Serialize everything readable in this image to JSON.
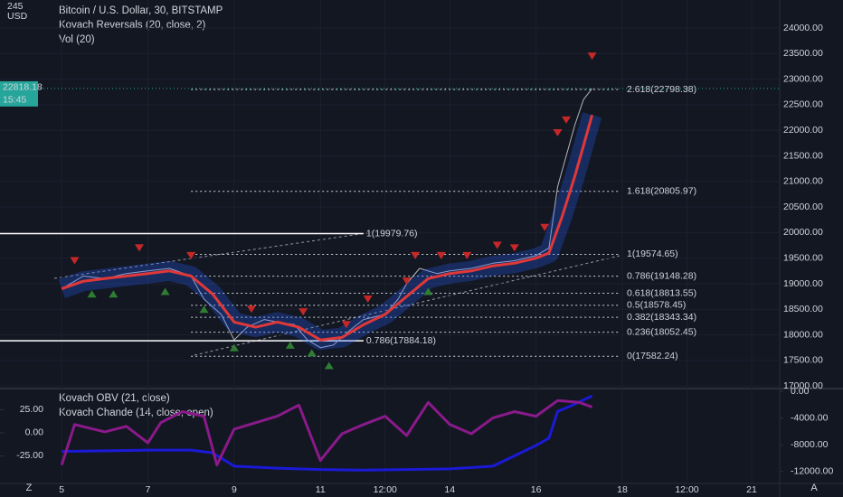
{
  "chart_data": [
    {
      "type": "line",
      "title": "Bitcoin / U.S. Dollar, 30, BITSTAMP",
      "annotations": [
        "Vol (20)"
      ],
      "unit": "USD",
      "xlim": [
        3.57,
        21.65
      ],
      "xticks": [
        5,
        7,
        9,
        11,
        {
          "value": 12.5,
          "label": "12:00"
        },
        14,
        16,
        18,
        {
          "value": 19.5,
          "label": "12:00"
        },
        21
      ],
      "ylim": [
        16950,
        24548
      ],
      "yticks": [
        {
          "value": 17000,
          "label": "17000.00"
        },
        {
          "value": 17500,
          "label": "17500.00"
        },
        {
          "value": 18000,
          "label": "18000.00"
        },
        {
          "value": 18500,
          "label": "18500.00"
        },
        {
          "value": 19000,
          "label": "19000.00"
        },
        {
          "value": 19500,
          "label": "19500.00"
        },
        {
          "value": 20000,
          "label": "20000.00"
        },
        {
          "value": 20500,
          "label": "20500.00"
        },
        {
          "value": 21000,
          "label": "21000.00"
        },
        {
          "value": 21500,
          "label": "21500.00"
        },
        {
          "value": 22000,
          "label": "22000.00"
        },
        {
          "value": 22500,
          "label": "22500.00"
        },
        {
          "value": 23000,
          "label": "23000.00"
        },
        {
          "value": 23500,
          "label": "23500.00"
        },
        {
          "value": 24000,
          "label": "24000.00"
        }
      ],
      "grid": true,
      "last_price": 22818.18,
      "countdown": "15:45",
      "series": [
        {
          "name": "Bitcoin / U.S. Dollar, 30, BITSTAMP",
          "color": "#b2b5be",
          "x": [
            5.0,
            5.5,
            6.0,
            6.5,
            7.0,
            7.5,
            8.0,
            8.3,
            8.7,
            9.0,
            9.3,
            9.7,
            10.0,
            10.4,
            10.7,
            11.0,
            11.3,
            11.7,
            12.0,
            12.5,
            12.8,
            13.0,
            13.3,
            13.7,
            14.0,
            14.5,
            15.0,
            15.5,
            16.0,
            16.3,
            16.5,
            16.7,
            16.9,
            17.1,
            17.3
          ],
          "values": [
            18900,
            19150,
            19100,
            19200,
            19250,
            19300,
            19150,
            18700,
            18400,
            17900,
            18150,
            18300,
            18250,
            18200,
            17900,
            17750,
            17800,
            18100,
            18300,
            18400,
            18700,
            19000,
            19300,
            19200,
            19250,
            19300,
            19400,
            19450,
            19550,
            19700,
            20900,
            21500,
            22100,
            22600,
            22818
          ]
        },
        {
          "name": "Kovach Reversals (20, close, 2)",
          "color": "#e03838",
          "x": [
            5.0,
            5.5,
            6.0,
            6.5,
            7.0,
            7.5,
            8.0,
            8.5,
            9.0,
            9.5,
            10.0,
            10.5,
            11.0,
            11.5,
            12.0,
            12.5,
            13.0,
            13.5,
            14.0,
            14.5,
            15.0,
            15.5,
            16.0,
            16.3,
            16.6,
            16.9,
            17.1,
            17.3
          ],
          "values": [
            18900,
            19050,
            19100,
            19150,
            19200,
            19250,
            19150,
            18800,
            18250,
            18150,
            18250,
            18150,
            17900,
            17950,
            18200,
            18400,
            18750,
            19100,
            19200,
            19250,
            19350,
            19400,
            19500,
            19600,
            20300,
            21100,
            21700,
            22300
          ]
        }
      ],
      "markers": {
        "sell": {
          "color": "#c62828",
          "x": [
            5.3,
            6.8,
            8.0,
            9.4,
            10.6,
            11.6,
            12.1,
            13.0,
            13.2,
            13.8,
            14.4,
            15.1,
            15.5,
            16.2,
            16.5,
            16.7,
            17.3
          ],
          "values": [
            19450,
            19700,
            19550,
            18500,
            18450,
            18200,
            18700,
            19050,
            19550,
            19550,
            19550,
            19750,
            19700,
            20100,
            21950,
            22200,
            23450
          ]
        },
        "buy": {
          "color": "#2e7d32",
          "x": [
            5.7,
            6.2,
            7.4,
            8.3,
            9.0,
            10.3,
            10.8,
            11.2,
            13.5
          ],
          "values": [
            18800,
            18800,
            18850,
            18500,
            17750,
            17800,
            17650,
            17400,
            18850
          ]
        }
      },
      "fib_levels": [
        {
          "label": "2.618(22798.38)",
          "value": 22798.38
        },
        {
          "label": "1.618(20805.97)",
          "value": 20805.97
        },
        {
          "label": "1(19574.65)",
          "value": 19574.65
        },
        {
          "label": "0.786(19148.28)",
          "value": 19148.28
        },
        {
          "label": "0.618(18813.55)",
          "value": 18813.55
        },
        {
          "label": "0.5(18578.45)",
          "value": 18578.45
        },
        {
          "label": "0.382(18343.34)",
          "value": 18343.34
        },
        {
          "label": "0.236(18052.45)",
          "value": 18052.45
        },
        {
          "label": "0(17582.24)",
          "value": 17582.24
        }
      ],
      "levels": [
        {
          "label": "1(19979.76)",
          "value": 19979.76
        },
        {
          "label": "0.786(17884.18)",
          "value": 17884.18
        }
      ]
    },
    {
      "type": "line",
      "xlim": [
        3.57,
        21.65
      ],
      "ylim": [
        -55,
        48
      ],
      "yticks": [
        {
          "value": 25,
          "label": "25.00"
        },
        {
          "value": 0,
          "label": "0.00"
        },
        {
          "value": -25,
          "label": "-25.00"
        }
      ],
      "y2lim": [
        -13780,
        405
      ],
      "y2ticks": [
        {
          "value": 0,
          "label": "0.00"
        },
        {
          "value": -4000,
          "label": "-4000.00"
        },
        {
          "value": -8000,
          "label": "-8000.00"
        },
        {
          "value": -12000,
          "label": "-12000.00"
        }
      ],
      "series": [
        {
          "name": "Kovach OBV (21, close)",
          "color": "#1a1ad6",
          "axis": "y2",
          "x": [
            5.0,
            6.0,
            7.0,
            8.0,
            8.5,
            9.0,
            10.0,
            11.0,
            12.0,
            13.0,
            14.0,
            15.0,
            16.0,
            16.3,
            16.5,
            16.8,
            17.3
          ],
          "values": [
            -9000,
            -8900,
            -8800,
            -8800,
            -9200,
            -11200,
            -11500,
            -11700,
            -11800,
            -11700,
            -11600,
            -11200,
            -8100,
            -7000,
            -3000,
            -2200,
            -700
          ]
        },
        {
          "name": "Kovach Chande (14, close, open)",
          "color": "#8a1a8a",
          "x": [
            5.0,
            5.3,
            6.0,
            6.5,
            7.0,
            7.3,
            7.8,
            8.3,
            8.6,
            9.0,
            10.0,
            10.5,
            11.0,
            11.5,
            12.0,
            12.5,
            13.0,
            13.5,
            14.0,
            14.5,
            15.0,
            15.5,
            16.0,
            16.5,
            17.0,
            17.3
          ],
          "values": [
            -35,
            9,
            1,
            7,
            -11,
            11,
            23,
            18,
            -35,
            4,
            18,
            30,
            -30,
            -1,
            9,
            18,
            -3,
            33,
            9,
            -1,
            16,
            23,
            18,
            35,
            33,
            28
          ]
        }
      ]
    }
  ],
  "ui": {
    "left_button": "Z",
    "right_button": "A"
  }
}
